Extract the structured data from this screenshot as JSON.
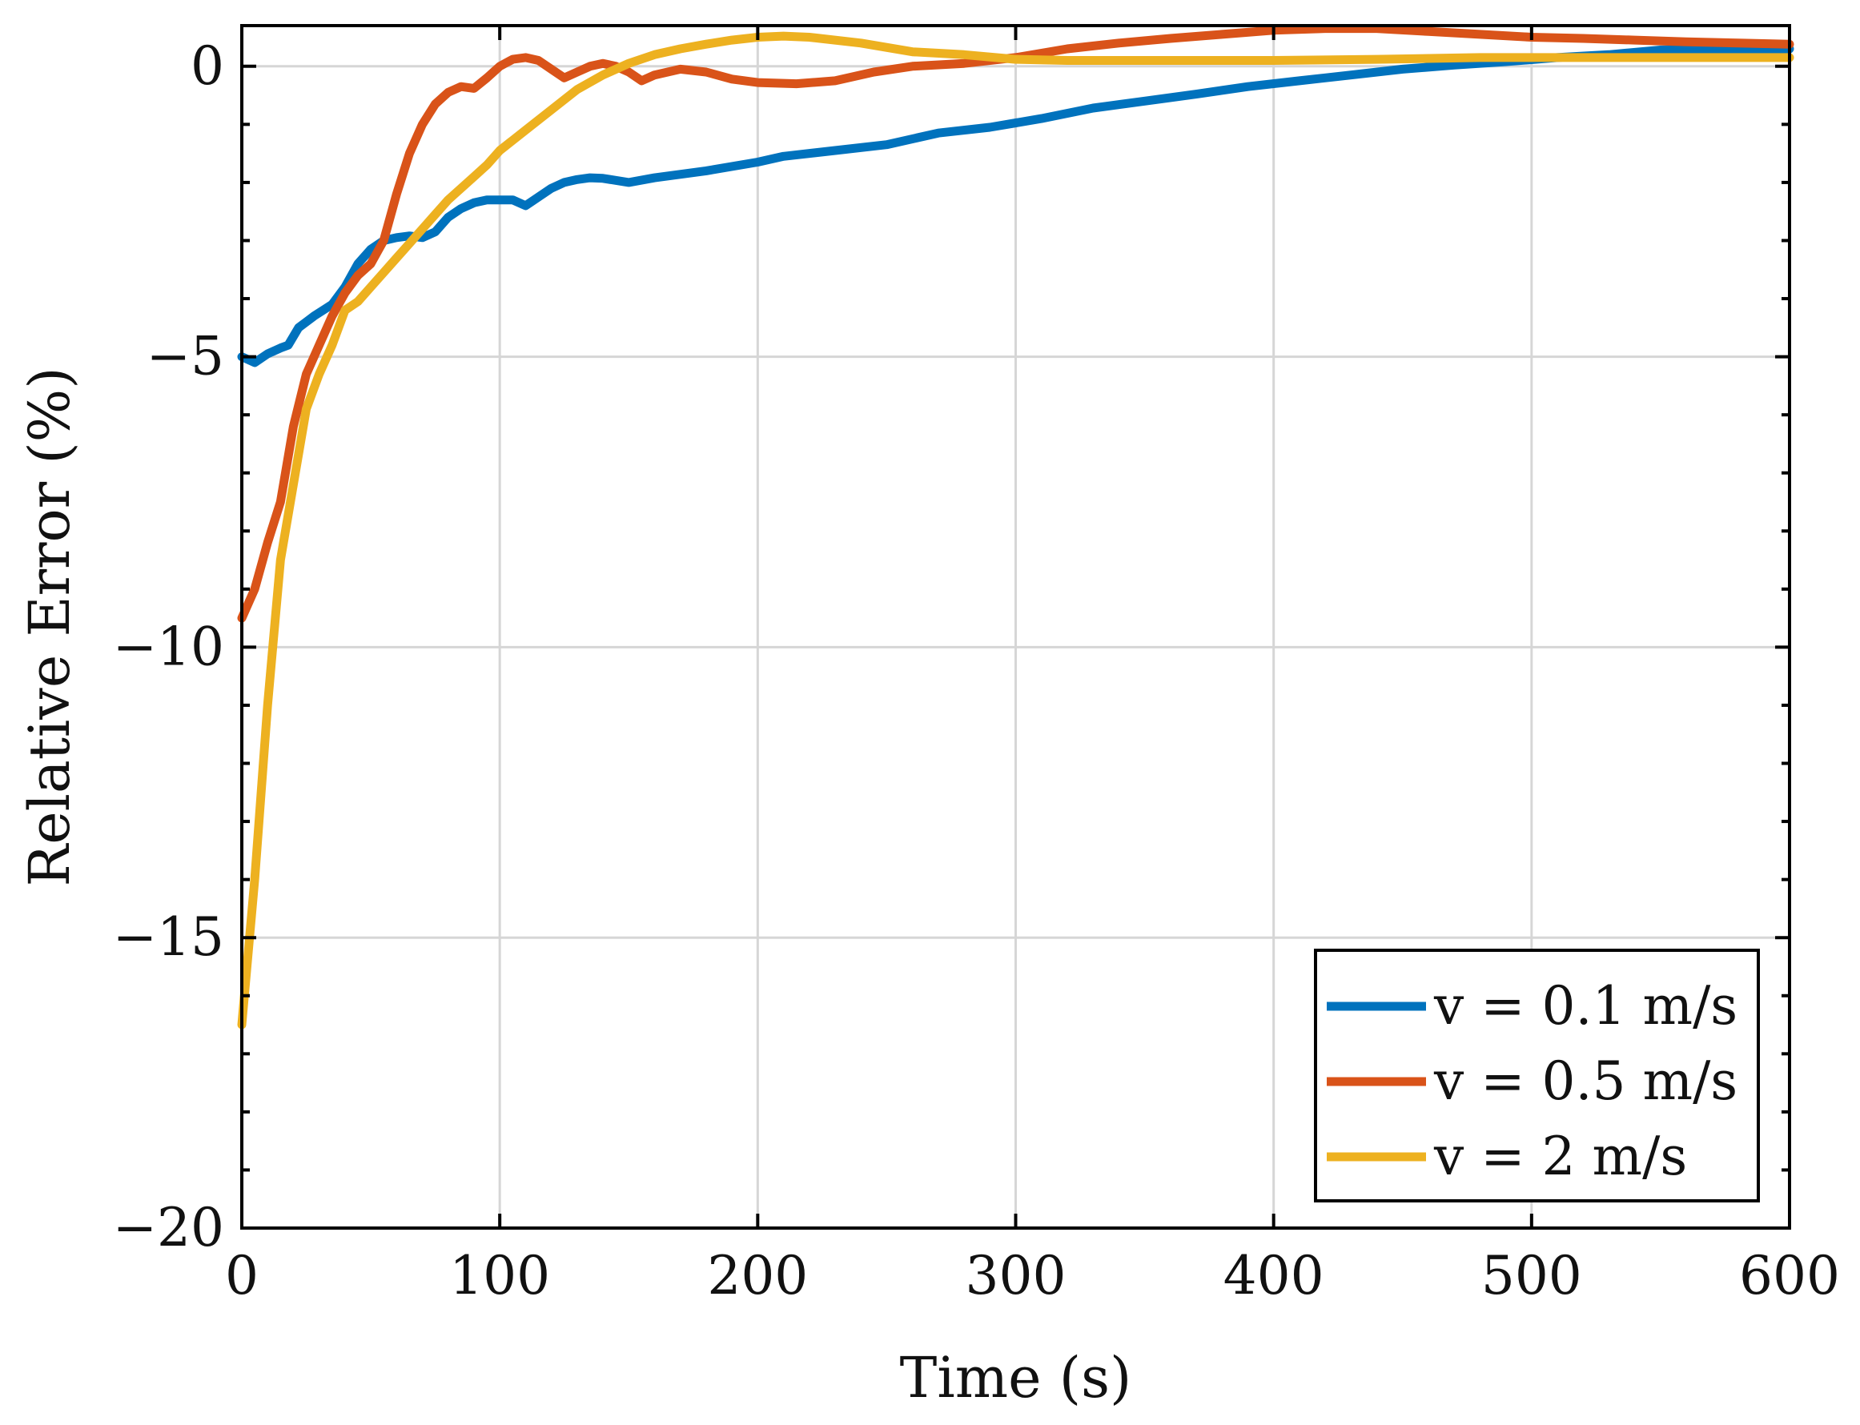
{
  "chart_data": {
    "type": "line",
    "title": "",
    "xlabel": "Time (s)",
    "ylabel": "Relative Error (%)",
    "xlim": [
      0,
      600
    ],
    "ylim": [
      -20,
      0.7
    ],
    "xticks": [
      0,
      100,
      200,
      300,
      400,
      500,
      600
    ],
    "xtick_labels": [
      "0",
      "100",
      "200",
      "300",
      "400",
      "500",
      "600"
    ],
    "yticks": [
      0,
      -5,
      -10,
      -15,
      -20
    ],
    "ytick_labels": [
      "0",
      "−5",
      "−10",
      "−15",
      "−20"
    ],
    "grid": true,
    "legend_position": "bottom-right",
    "series": [
      {
        "name": "v = 0.1 m/s",
        "color": "#0072BD",
        "points": [
          [
            0,
            -5.0
          ],
          [
            5,
            -5.1
          ],
          [
            10,
            -4.95
          ],
          [
            15,
            -4.85
          ],
          [
            18,
            -4.8
          ],
          [
            22,
            -4.5
          ],
          [
            28,
            -4.3
          ],
          [
            35,
            -4.1
          ],
          [
            40,
            -3.8
          ],
          [
            45,
            -3.4
          ],
          [
            50,
            -3.15
          ],
          [
            55,
            -3.0
          ],
          [
            60,
            -2.95
          ],
          [
            65,
            -2.92
          ],
          [
            70,
            -2.95
          ],
          [
            75,
            -2.85
          ],
          [
            80,
            -2.6
          ],
          [
            85,
            -2.45
          ],
          [
            90,
            -2.35
          ],
          [
            95,
            -2.3
          ],
          [
            100,
            -2.3
          ],
          [
            105,
            -2.3
          ],
          [
            110,
            -2.4
          ],
          [
            115,
            -2.25
          ],
          [
            120,
            -2.1
          ],
          [
            125,
            -2.0
          ],
          [
            130,
            -1.95
          ],
          [
            135,
            -1.92
          ],
          [
            140,
            -1.93
          ],
          [
            150,
            -2.0
          ],
          [
            160,
            -1.92
          ],
          [
            180,
            -1.8
          ],
          [
            200,
            -1.65
          ],
          [
            210,
            -1.55
          ],
          [
            230,
            -1.45
          ],
          [
            250,
            -1.35
          ],
          [
            270,
            -1.15
          ],
          [
            290,
            -1.05
          ],
          [
            310,
            -0.9
          ],
          [
            330,
            -0.72
          ],
          [
            350,
            -0.6
          ],
          [
            370,
            -0.48
          ],
          [
            390,
            -0.35
          ],
          [
            410,
            -0.25
          ],
          [
            430,
            -0.15
          ],
          [
            450,
            -0.05
          ],
          [
            470,
            0.02
          ],
          [
            490,
            0.08
          ],
          [
            510,
            0.15
          ],
          [
            530,
            0.2
          ],
          [
            550,
            0.28
          ],
          [
            570,
            0.3
          ],
          [
            600,
            0.3
          ]
        ]
      },
      {
        "name": "v = 0.5 m/s",
        "color": "#D95319",
        "points": [
          [
            0,
            -9.5
          ],
          [
            5,
            -9.0
          ],
          [
            10,
            -8.2
          ],
          [
            15,
            -7.5
          ],
          [
            20,
            -6.2
          ],
          [
            25,
            -5.3
          ],
          [
            30,
            -4.8
          ],
          [
            35,
            -4.3
          ],
          [
            40,
            -3.9
          ],
          [
            45,
            -3.6
          ],
          [
            50,
            -3.4
          ],
          [
            55,
            -3.0
          ],
          [
            60,
            -2.2
          ],
          [
            65,
            -1.5
          ],
          [
            70,
            -1.0
          ],
          [
            75,
            -0.65
          ],
          [
            80,
            -0.45
          ],
          [
            85,
            -0.35
          ],
          [
            90,
            -0.38
          ],
          [
            95,
            -0.2
          ],
          [
            100,
            0.0
          ],
          [
            105,
            0.12
          ],
          [
            110,
            0.15
          ],
          [
            115,
            0.1
          ],
          [
            120,
            -0.05
          ],
          [
            125,
            -0.2
          ],
          [
            130,
            -0.1
          ],
          [
            135,
            0.0
          ],
          [
            140,
            0.05
          ],
          [
            145,
            0.0
          ],
          [
            150,
            -0.1
          ],
          [
            155,
            -0.25
          ],
          [
            160,
            -0.15
          ],
          [
            170,
            -0.05
          ],
          [
            180,
            -0.1
          ],
          [
            190,
            -0.22
          ],
          [
            200,
            -0.28
          ],
          [
            215,
            -0.3
          ],
          [
            230,
            -0.25
          ],
          [
            245,
            -0.1
          ],
          [
            260,
            0.0
          ],
          [
            280,
            0.05
          ],
          [
            300,
            0.15
          ],
          [
            320,
            0.3
          ],
          [
            340,
            0.4
          ],
          [
            360,
            0.48
          ],
          [
            380,
            0.55
          ],
          [
            400,
            0.62
          ],
          [
            420,
            0.65
          ],
          [
            440,
            0.65
          ],
          [
            460,
            0.6
          ],
          [
            480,
            0.55
          ],
          [
            500,
            0.5
          ],
          [
            520,
            0.48
          ],
          [
            540,
            0.45
          ],
          [
            560,
            0.42
          ],
          [
            580,
            0.4
          ],
          [
            600,
            0.38
          ]
        ]
      },
      {
        "name": "v = 2 m/s",
        "color": "#EDB120",
        "points": [
          [
            0,
            -16.5
          ],
          [
            5,
            -14.0
          ],
          [
            10,
            -11.0
          ],
          [
            15,
            -8.5
          ],
          [
            20,
            -7.2
          ],
          [
            25,
            -5.9
          ],
          [
            30,
            -5.3
          ],
          [
            35,
            -4.8
          ],
          [
            40,
            -4.2
          ],
          [
            45,
            -4.05
          ],
          [
            50,
            -3.8
          ],
          [
            55,
            -3.55
          ],
          [
            60,
            -3.3
          ],
          [
            65,
            -3.05
          ],
          [
            70,
            -2.8
          ],
          [
            75,
            -2.55
          ],
          [
            80,
            -2.3
          ],
          [
            90,
            -1.9
          ],
          [
            95,
            -1.7
          ],
          [
            100,
            -1.45
          ],
          [
            110,
            -1.1
          ],
          [
            120,
            -0.75
          ],
          [
            130,
            -0.4
          ],
          [
            140,
            -0.15
          ],
          [
            150,
            0.05
          ],
          [
            160,
            0.2
          ],
          [
            170,
            0.3
          ],
          [
            180,
            0.38
          ],
          [
            190,
            0.45
          ],
          [
            200,
            0.5
          ],
          [
            210,
            0.52
          ],
          [
            220,
            0.5
          ],
          [
            240,
            0.4
          ],
          [
            260,
            0.25
          ],
          [
            280,
            0.2
          ],
          [
            300,
            0.12
          ],
          [
            320,
            0.1
          ],
          [
            360,
            0.1
          ],
          [
            400,
            0.1
          ],
          [
            440,
            0.12
          ],
          [
            480,
            0.15
          ],
          [
            520,
            0.15
          ],
          [
            560,
            0.15
          ],
          [
            600,
            0.15
          ]
        ]
      }
    ]
  }
}
